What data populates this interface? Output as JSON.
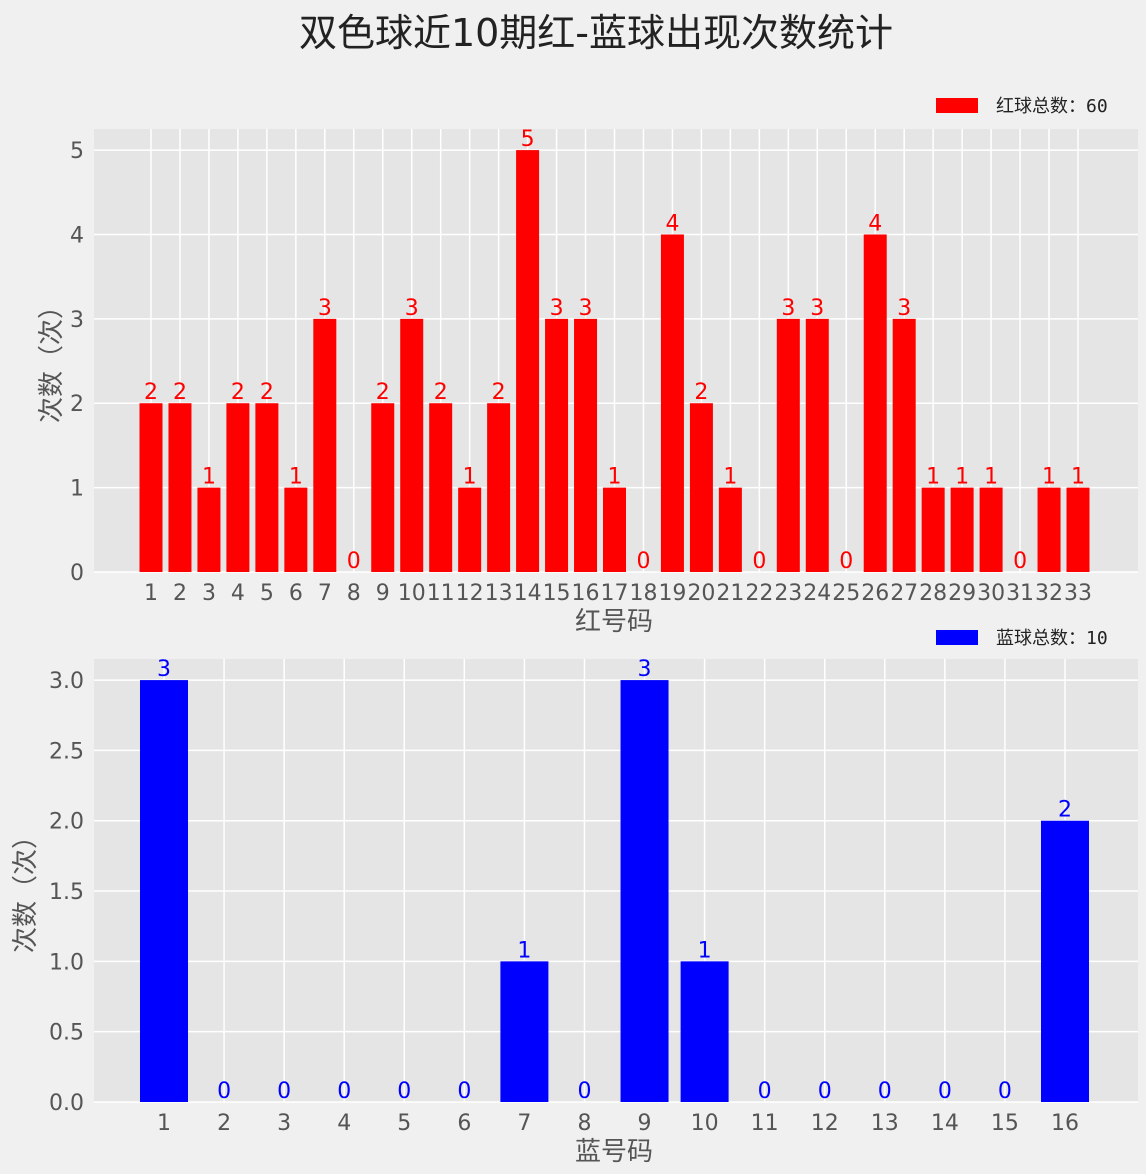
{
  "title": "双色球近10期红-蓝球出现次数统计",
  "chart_data": [
    {
      "type": "bar",
      "name": "red",
      "categories": [
        "1",
        "2",
        "3",
        "4",
        "5",
        "6",
        "7",
        "8",
        "9",
        "10",
        "11",
        "12",
        "13",
        "14",
        "15",
        "16",
        "17",
        "18",
        "19",
        "20",
        "21",
        "22",
        "23",
        "24",
        "25",
        "26",
        "27",
        "28",
        "29",
        "30",
        "31",
        "32",
        "33"
      ],
      "values": [
        2,
        2,
        1,
        2,
        2,
        1,
        3,
        0,
        2,
        3,
        2,
        1,
        2,
        5,
        3,
        3,
        1,
        0,
        4,
        2,
        1,
        0,
        3,
        3,
        0,
        4,
        3,
        1,
        1,
        1,
        0,
        1,
        1
      ],
      "xlabel": "红号码",
      "ylabel": "次数（次）",
      "yticks": [
        "0",
        "1",
        "2",
        "3",
        "4",
        "5"
      ],
      "ylim": [
        0,
        5.25
      ],
      "legend": "红球总数：60",
      "legend_position": "top-right",
      "color": "#ff0000",
      "grid": true
    },
    {
      "type": "bar",
      "name": "blue",
      "categories": [
        "1",
        "2",
        "3",
        "4",
        "5",
        "6",
        "7",
        "8",
        "9",
        "10",
        "11",
        "12",
        "13",
        "14",
        "15",
        "16"
      ],
      "values": [
        3,
        0,
        0,
        0,
        0,
        0,
        1,
        0,
        3,
        1,
        0,
        0,
        0,
        0,
        0,
        2
      ],
      "xlabel": "蓝号码",
      "ylabel": "次数（次）",
      "yticks": [
        "0.0",
        "0.5",
        "1.0",
        "1.5",
        "2.0",
        "2.5",
        "3.0"
      ],
      "ylim": [
        0,
        3.15
      ],
      "legend": "蓝球总数：10",
      "legend_position": "top-right",
      "color": "#0000ff",
      "grid": true
    }
  ]
}
